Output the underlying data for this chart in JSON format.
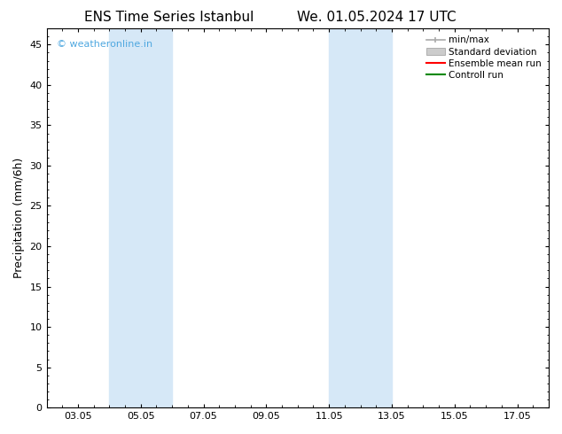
{
  "title_left": "ENS Time Series Istanbul",
  "title_right": "We. 01.05.2024 17 UTC",
  "ylabel": "Precipitation (mm/6h)",
  "x_ticks_labels": [
    "03.05",
    "05.05",
    "07.05",
    "09.05",
    "11.05",
    "13.05",
    "15.05",
    "17.05"
  ],
  "x_ticks_positions": [
    3,
    5,
    7,
    9,
    11,
    13,
    15,
    17
  ],
  "ylim": [
    0,
    47
  ],
  "y_ticks": [
    0,
    5,
    10,
    15,
    20,
    25,
    30,
    35,
    40,
    45
  ],
  "xlim": [
    2,
    18
  ],
  "shaded_bands": [
    {
      "x_start": 4.0,
      "x_end": 6.0
    },
    {
      "x_start": 11.0,
      "x_end": 13.0
    }
  ],
  "shade_color": "#d6e8f7",
  "background_color": "#ffffff",
  "watermark_text": "© weatheronline.in",
  "watermark_color": "#4fa8e0",
  "legend_items": [
    {
      "label": "min/max",
      "color": "#aaaaaa",
      "type": "minmax"
    },
    {
      "label": "Standard deviation",
      "color": "#cccccc",
      "type": "patch"
    },
    {
      "label": "Ensemble mean run",
      "color": "#ff0000",
      "type": "line"
    },
    {
      "label": "Controll run",
      "color": "#008800",
      "type": "line"
    }
  ],
  "title_fontsize": 11,
  "ylabel_fontsize": 9,
  "tick_fontsize": 8,
  "legend_fontsize": 7.5,
  "watermark_fontsize": 8
}
